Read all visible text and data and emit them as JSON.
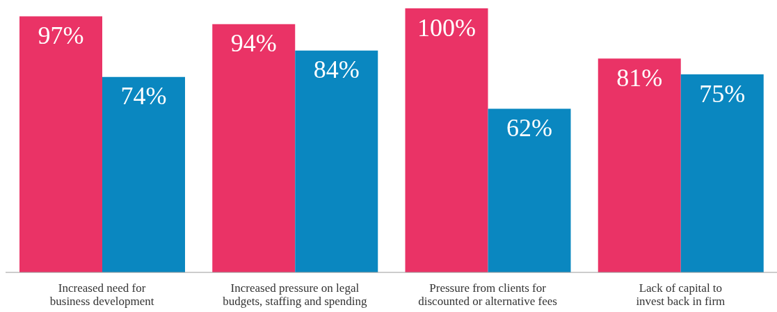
{
  "chart_data": {
    "type": "bar",
    "categories": [
      "Increased need for business development",
      "Increased pressure on legal budgets, staffing and spending",
      "Pressure from clients for discounted or alternative fees",
      "Lack of capital to invest back in firm"
    ],
    "series": [
      {
        "color": "#ea3366",
        "values": [
          97,
          94,
          100,
          81
        ],
        "value_labels": [
          "97%",
          "94%",
          "100%",
          "81%"
        ]
      },
      {
        "color": "#0a87c0",
        "values": [
          74,
          84,
          62,
          75
        ],
        "value_labels": [
          "74%",
          "84%",
          "62%",
          "75%"
        ]
      }
    ],
    "tick_labels": "x",
    "grid": false,
    "legend": false
  }
}
